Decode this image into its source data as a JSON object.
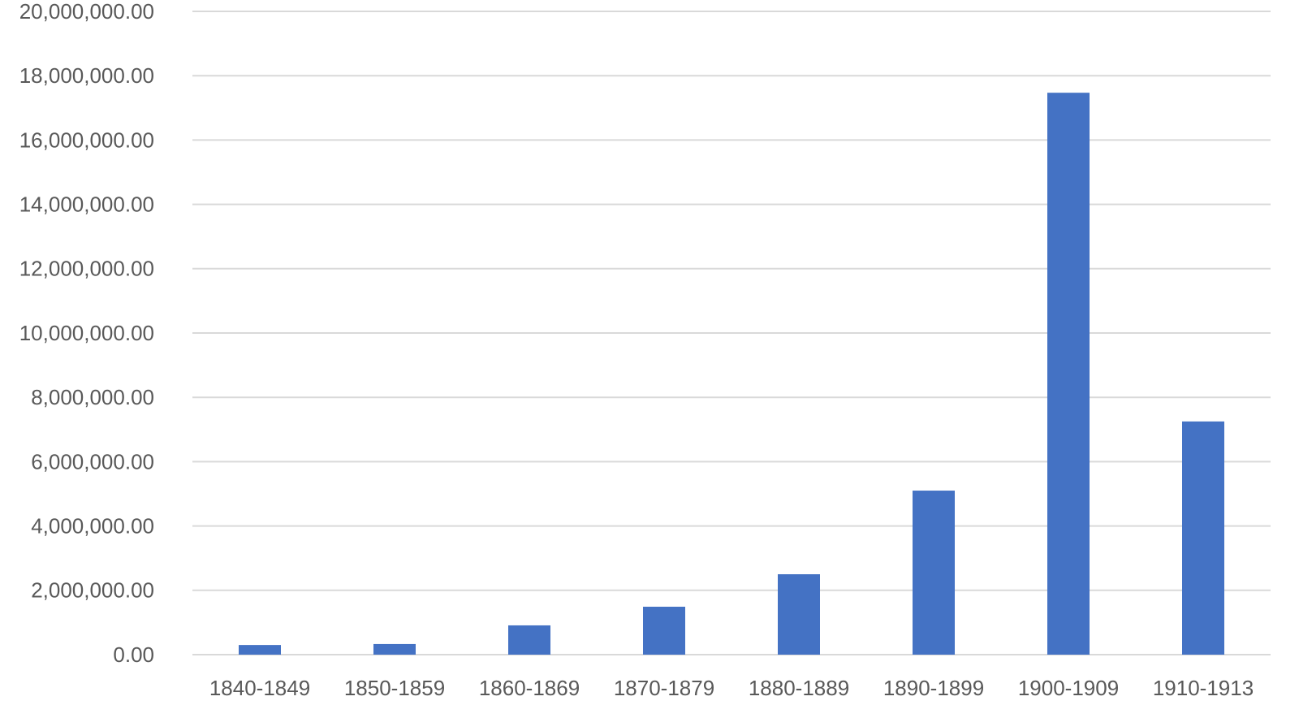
{
  "chart_data": {
    "type": "bar",
    "categories": [
      "1840-1849",
      "1850-1859",
      "1860-1869",
      "1870-1879",
      "1880-1889",
      "1890-1899",
      "1900-1909",
      "1910-1913"
    ],
    "values": [
      300000,
      330000,
      910000,
      1490000,
      2500000,
      5100000,
      17470000,
      7250000
    ],
    "color": "#4472c4",
    "ylim": [
      0,
      20000000
    ],
    "yticks": [
      {
        "value": 0,
        "label": "0.00"
      },
      {
        "value": 2000000,
        "label": "2,000,000.00"
      },
      {
        "value": 4000000,
        "label": "4,000,000.00"
      },
      {
        "value": 6000000,
        "label": "6,000,000.00"
      },
      {
        "value": 8000000,
        "label": "8,000,000.00"
      },
      {
        "value": 10000000,
        "label": "10,000,000.00"
      },
      {
        "value": 12000000,
        "label": "12,000,000.00"
      },
      {
        "value": 14000000,
        "label": "14,000,000.00"
      },
      {
        "value": 16000000,
        "label": "16,000,000.00"
      },
      {
        "value": 18000000,
        "label": "18,000,000.00"
      },
      {
        "value": 20000000,
        "label": "20,000,000.00"
      }
    ],
    "grid": true
  }
}
